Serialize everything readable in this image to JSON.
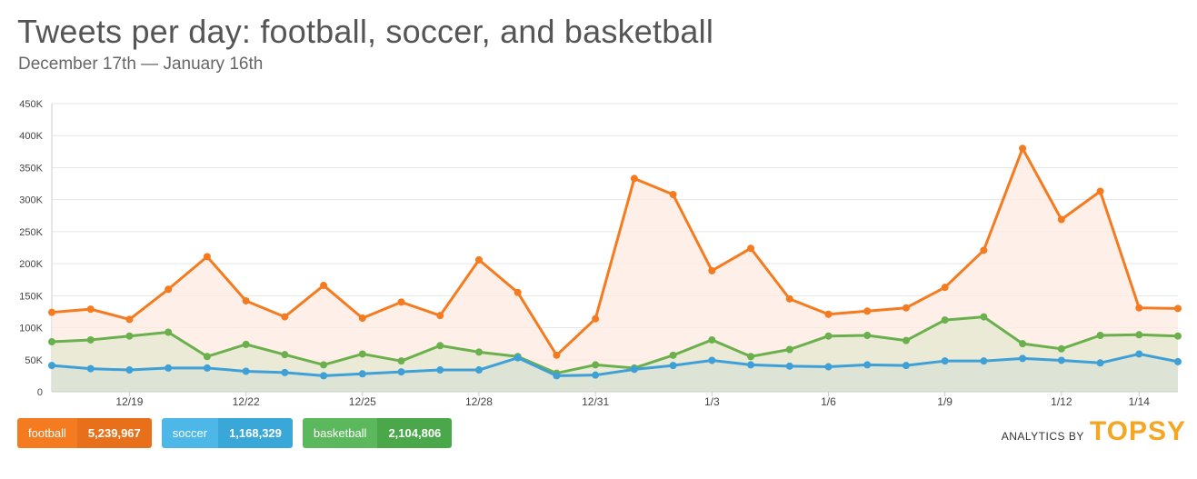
{
  "header": {
    "title": "Tweets per day: football, soccer, and basketball",
    "subtitle": "December 17th — January 16th"
  },
  "legend": [
    {
      "name": "football",
      "value": "5,239,967",
      "color": "#f47b20",
      "value_bg": "#e8701a"
    },
    {
      "name": "soccer",
      "value": "1,168,329",
      "color": "#4db8e8",
      "value_bg": "#3aa7d9"
    },
    {
      "name": "basketball",
      "value": "2,104,806",
      "color": "#5cb85c",
      "value_bg": "#4aa84a"
    }
  ],
  "brand": {
    "prefix": "ANALYTICS BY",
    "name": "TOPSY"
  },
  "chart_data": {
    "type": "area",
    "x_tick_labels": [
      "12/19",
      "12/22",
      "12/25",
      "12/28",
      "12/31",
      "1/3",
      "1/6",
      "1/9",
      "1/12",
      "1/14"
    ],
    "y_tick_labels": [
      "0",
      "50K",
      "100K",
      "150K",
      "200K",
      "250K",
      "300K",
      "350K",
      "400K",
      "450K"
    ],
    "ylim": [
      0,
      450000
    ],
    "grid": true,
    "x": [
      "12/17",
      "12/18",
      "12/19",
      "12/20",
      "12/21",
      "12/22",
      "12/23",
      "12/24",
      "12/25",
      "12/26",
      "12/27",
      "12/28",
      "12/29",
      "12/30",
      "12/31",
      "1/1",
      "1/2",
      "1/3",
      "1/4",
      "1/5",
      "1/6",
      "1/7",
      "1/8",
      "1/9",
      "1/10",
      "1/11",
      "1/12",
      "1/13",
      "1/14",
      "1/15"
    ],
    "series": [
      {
        "name": "football",
        "color": "#f47b20",
        "fill": "#fdebe0",
        "values": [
          124000,
          129000,
          113000,
          160000,
          211000,
          142000,
          117000,
          166000,
          115000,
          140000,
          119000,
          206000,
          155000,
          57000,
          114000,
          333000,
          308000,
          189000,
          224000,
          145000,
          121000,
          126000,
          131000,
          163000,
          221000,
          380000,
          269000,
          313000,
          131000,
          130000
        ]
      },
      {
        "name": "basketball",
        "color": "#6ab04c",
        "fill": "#e4e8d0",
        "values": [
          78000,
          81000,
          87000,
          93000,
          55000,
          74000,
          58000,
          42000,
          59000,
          48000,
          72000,
          62000,
          55000,
          29000,
          42000,
          37000,
          57000,
          81000,
          55000,
          66000,
          87000,
          88000,
          80000,
          112000,
          117000,
          75000,
          67000,
          88000,
          89000,
          87000
        ]
      },
      {
        "name": "soccer",
        "color": "#3ea0d6",
        "fill": "#d8e0d4",
        "values": [
          41000,
          36000,
          34000,
          37000,
          37000,
          32000,
          30000,
          25000,
          28000,
          31000,
          34000,
          34000,
          53000,
          25000,
          26000,
          35000,
          41000,
          49000,
          42000,
          40000,
          39000,
          42000,
          41000,
          48000,
          48000,
          52000,
          49000,
          45000,
          59000,
          47000
        ]
      }
    ]
  }
}
